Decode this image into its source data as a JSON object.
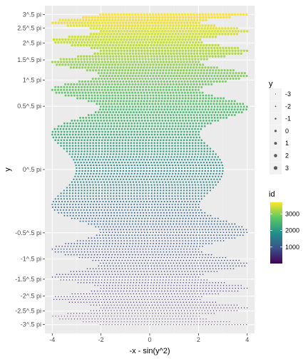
{
  "chart_data": {
    "type": "scatter",
    "xlabel": "-x - sin(y^2)",
    "ylabel": "y",
    "xlim": [
      -4.3,
      4.3
    ],
    "ylim": [
      -1.83,
      1.83
    ],
    "grid": true,
    "x_ticks": [
      -4,
      -2,
      0,
      2,
      4
    ],
    "x_tick_labels": [
      "-4",
      "-2",
      "0",
      "2",
      "4"
    ],
    "y_ticks": [
      {
        "label": "3^.5 pi",
        "value": 1.7321
      },
      {
        "label": "2.5^.5 pi",
        "value": 1.5811
      },
      {
        "label": "2^.5 pi",
        "value": 1.4142
      },
      {
        "label": "1.5^.5 pi",
        "value": 1.2247
      },
      {
        "label": "1^.5 pi",
        "value": 1.0
      },
      {
        "label": "0.5^.5 pi",
        "value": 0.7071
      },
      {
        "label": "0^.5 pi",
        "value": 0.0
      },
      {
        "label": "-0.5^.5 pi",
        "value": -0.7071
      },
      {
        "label": "-1^.5 pi",
        "value": -1.0
      },
      {
        "label": "-1.5^.5 pi",
        "value": -1.2247
      },
      {
        "label": "-2^.5 pi",
        "value": -1.4142
      },
      {
        "label": "-2.5^.5 pi",
        "value": -1.5811
      },
      {
        "label": "-3^.5 pi",
        "value": -1.7321
      }
    ],
    "points": {
      "y_range": [
        -1.7321,
        1.7321
      ],
      "row_count": 112,
      "x_min_of_y": "-3 - sin((pi*y)^2)",
      "x_max_of_y": "3 - sin((pi*y)^2)",
      "x_step": 0.12,
      "id_range": [
        1,
        3700
      ]
    },
    "legend_size": {
      "title": "y",
      "position": "right",
      "entries": [
        "-3",
        "-2",
        "-1",
        "0",
        "1",
        "2",
        "3"
      ]
    },
    "legend_color": {
      "title": "id",
      "position": "right",
      "breaks": [
        "1000",
        "2000",
        "3000"
      ],
      "range": [
        1,
        3700
      ],
      "palette": "viridis",
      "stops": [
        "#440154",
        "#3b528b",
        "#21908c",
        "#5dc863",
        "#fde725"
      ]
    }
  }
}
